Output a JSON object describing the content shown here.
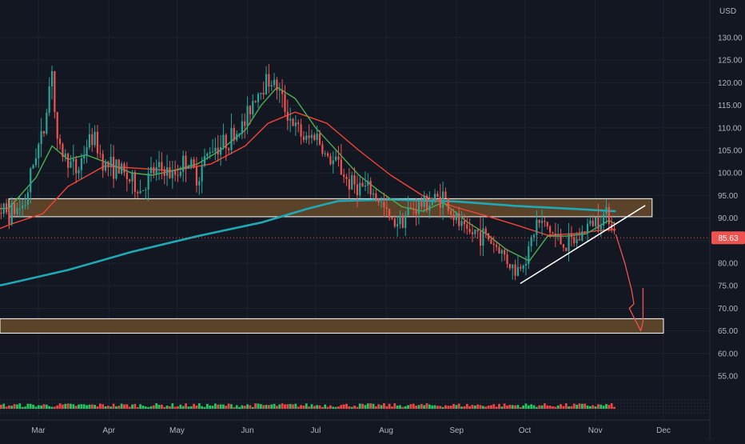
{
  "chart_data": {
    "type": "candlestick",
    "currency_label": "USD",
    "price_scale": {
      "min": 50,
      "max": 135,
      "ticks": [
        55,
        60,
        65,
        70,
        75,
        80,
        85,
        90,
        95,
        100,
        105,
        110,
        115,
        120,
        125,
        130
      ]
    },
    "month_labels": [
      "Mar",
      "Apr",
      "May",
      "Jun",
      "Jul",
      "Aug",
      "Sep",
      "Oct",
      "Nov",
      "Dec"
    ],
    "last_price": "85.63",
    "last_price_value": 85.63,
    "colors": {
      "background": "#131722",
      "grid": "#1e222d",
      "up_candle": "#26a69a",
      "down_candle": "#ef5350",
      "ma_short": "#4caf50",
      "ma_medium": "#f44336",
      "ma_long": "#1fa8b5",
      "zone_fill": "#5a4328",
      "zone_border": "#ffffff",
      "trendline": "#ffffff",
      "projection": "#ef5350",
      "price_label_bg": "#ef5350",
      "axis_text": "#b2b5be"
    },
    "zones": [
      {
        "name": "resistance-zone",
        "price_top": 94.3,
        "price_bottom": 90.3,
        "date_start": "2022-02-16",
        "date_end": "2022-11-26"
      },
      {
        "name": "support-zone",
        "price_top": 67.7,
        "price_bottom": 64.5,
        "date_start": "2022-02-02",
        "date_end": "2022-12-01"
      }
    ],
    "trendline": {
      "start": {
        "date": "2022-09-29",
        "price": 75.5
      },
      "end": {
        "date": "2022-11-23",
        "price": 92.8
      }
    },
    "projection_path": [
      {
        "date": "2022-11-10",
        "price": 86.4
      },
      {
        "date": "2022-11-14",
        "price": 80
      },
      {
        "date": "2022-11-17",
        "price": 74
      },
      {
        "date": "2022-11-18",
        "price": 71
      },
      {
        "date": "2022-11-16",
        "price": 70
      },
      {
        "date": "2022-11-18",
        "price": 68
      },
      {
        "date": "2022-11-21",
        "price": 65
      },
      {
        "date": "2022-11-22",
        "price": 67
      },
      {
        "date": "2022-11-22",
        "price": 74.5
      }
    ],
    "price_series": [
      [
        "2022-02-02",
        91.5
      ],
      [
        "2022-02-09",
        92.5
      ],
      [
        "2022-02-16",
        91
      ],
      [
        "2022-02-23",
        93
      ],
      [
        "2022-02-28",
        105
      ],
      [
        "2022-03-03",
        108
      ],
      [
        "2022-03-07",
        124
      ],
      [
        "2022-03-09",
        106
      ],
      [
        "2022-03-14",
        103
      ],
      [
        "2022-03-18",
        100
      ],
      [
        "2022-03-22",
        106
      ],
      [
        "2022-03-25",
        108
      ],
      [
        "2022-03-30",
        102
      ],
      [
        "2022-04-05",
        101
      ],
      [
        "2022-04-11",
        98
      ],
      [
        "2022-04-15",
        96
      ],
      [
        "2022-04-20",
        100
      ],
      [
        "2022-04-25",
        101
      ],
      [
        "2022-04-29",
        99
      ],
      [
        "2022-05-05",
        103
      ],
      [
        "2022-05-10",
        99
      ],
      [
        "2022-05-16",
        106
      ],
      [
        "2022-05-20",
        106
      ],
      [
        "2022-05-25",
        108
      ],
      [
        "2022-05-31",
        111
      ],
      [
        "2022-06-03",
        116
      ],
      [
        "2022-06-07",
        119
      ],
      [
        "2022-06-10",
        121
      ],
      [
        "2022-06-14",
        119
      ],
      [
        "2022-06-17",
        115
      ],
      [
        "2022-06-22",
        110
      ],
      [
        "2022-06-27",
        107
      ],
      [
        "2022-07-01",
        109
      ],
      [
        "2022-07-06",
        103
      ],
      [
        "2022-07-11",
        102
      ],
      [
        "2022-07-15",
        98
      ],
      [
        "2022-07-20",
        97
      ],
      [
        "2022-07-25",
        96
      ],
      [
        "2022-07-29",
        94
      ],
      [
        "2022-08-03",
        89
      ],
      [
        "2022-08-08",
        90
      ],
      [
        "2022-08-12",
        92
      ],
      [
        "2022-08-17",
        93
      ],
      [
        "2022-08-22",
        94
      ],
      [
        "2022-08-26",
        95
      ],
      [
        "2022-08-31",
        90
      ],
      [
        "2022-09-06",
        86
      ],
      [
        "2022-09-09",
        87
      ],
      [
        "2022-09-14",
        86
      ],
      [
        "2022-09-20",
        83
      ],
      [
        "2022-09-23",
        81
      ],
      [
        "2022-09-27",
        78
      ],
      [
        "2022-10-03",
        83
      ],
      [
        "2022-10-06",
        89
      ],
      [
        "2022-10-11",
        88
      ],
      [
        "2022-10-14",
        86
      ],
      [
        "2022-10-19",
        84
      ],
      [
        "2022-10-24",
        85
      ],
      [
        "2022-10-28",
        88
      ],
      [
        "2022-11-02",
        90
      ],
      [
        "2022-11-07",
        91
      ],
      [
        "2022-11-10",
        85.63
      ]
    ],
    "ma_short_series": [
      [
        "2022-02-02",
        91.8
      ],
      [
        "2022-02-16",
        92.2
      ],
      [
        "2022-02-28",
        99
      ],
      [
        "2022-03-07",
        106
      ],
      [
        "2022-03-14",
        103
      ],
      [
        "2022-03-22",
        104
      ],
      [
        "2022-03-30",
        102.5
      ],
      [
        "2022-04-11",
        100
      ],
      [
        "2022-04-20",
        99.5
      ],
      [
        "2022-04-29",
        100.5
      ],
      [
        "2022-05-10",
        102
      ],
      [
        "2022-05-20",
        105
      ],
      [
        "2022-05-31",
        109.5
      ],
      [
        "2022-06-07",
        115
      ],
      [
        "2022-06-14",
        119
      ],
      [
        "2022-06-22",
        116.5
      ],
      [
        "2022-07-01",
        110
      ],
      [
        "2022-07-11",
        104.5
      ],
      [
        "2022-07-20",
        99.5
      ],
      [
        "2022-07-29",
        96
      ],
      [
        "2022-08-08",
        92.5
      ],
      [
        "2022-08-17",
        91.5
      ],
      [
        "2022-08-26",
        93.5
      ],
      [
        "2022-09-06",
        89
      ],
      [
        "2022-09-14",
        86.5
      ],
      [
        "2022-09-23",
        83
      ],
      [
        "2022-10-03",
        80.5
      ],
      [
        "2022-10-11",
        86
      ],
      [
        "2022-10-19",
        86
      ],
      [
        "2022-10-28",
        86.5
      ],
      [
        "2022-11-07",
        89.5
      ],
      [
        "2022-11-10",
        88.6
      ]
    ],
    "ma_medium_series": [
      [
        "2022-02-02",
        85.6
      ],
      [
        "2022-02-16",
        88.5
      ],
      [
        "2022-03-03",
        91
      ],
      [
        "2022-03-14",
        97
      ],
      [
        "2022-03-30",
        101.5
      ],
      [
        "2022-04-15",
        101
      ],
      [
        "2022-04-29",
        100.5
      ],
      [
        "2022-05-16",
        102
      ],
      [
        "2022-05-31",
        106
      ],
      [
        "2022-06-10",
        111
      ],
      [
        "2022-06-22",
        113.5
      ],
      [
        "2022-07-06",
        111
      ],
      [
        "2022-07-20",
        105
      ],
      [
        "2022-08-03",
        99.5
      ],
      [
        "2022-08-17",
        95
      ],
      [
        "2022-08-31",
        92.5
      ],
      [
        "2022-09-14",
        90.5
      ],
      [
        "2022-09-27",
        88.5
      ],
      [
        "2022-10-11",
        86.2
      ],
      [
        "2022-10-24",
        86.6
      ],
      [
        "2022-11-02",
        87.2
      ],
      [
        "2022-11-10",
        87.5
      ]
    ],
    "ma_long_series": [
      [
        "2022-02-02",
        74
      ],
      [
        "2022-02-16",
        75.5
      ],
      [
        "2022-03-14",
        78.5
      ],
      [
        "2022-04-11",
        82.5
      ],
      [
        "2022-05-10",
        86
      ],
      [
        "2022-06-07",
        89
      ],
      [
        "2022-06-27",
        92
      ],
      [
        "2022-07-11",
        93.8
      ],
      [
        "2022-08-03",
        94.1
      ],
      [
        "2022-08-31",
        93.7
      ],
      [
        "2022-09-27",
        92.7
      ],
      [
        "2022-10-24",
        92
      ],
      [
        "2022-11-10",
        91.5
      ]
    ]
  }
}
